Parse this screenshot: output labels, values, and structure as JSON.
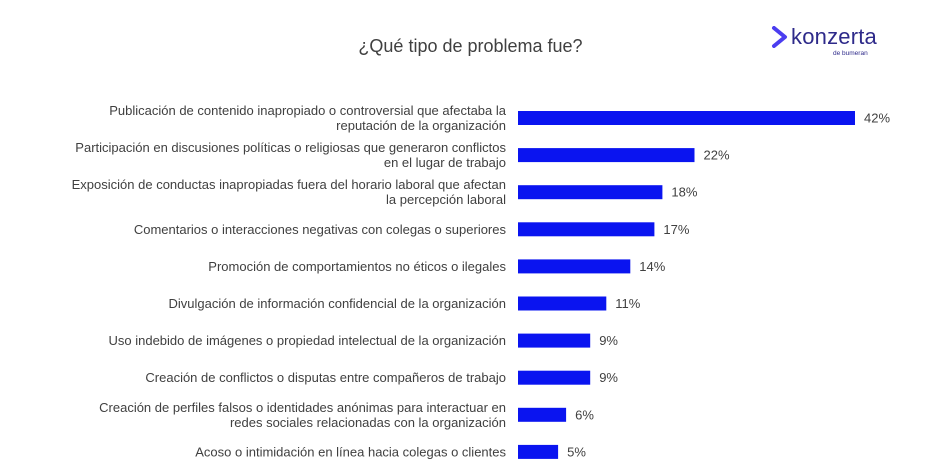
{
  "logo": {
    "brand": "konzerta",
    "sub": "de bumeran"
  },
  "colors": {
    "bar": "#0a14f0",
    "text": "#404040",
    "brand": "#2e2a8a",
    "mark": "#4b3df0"
  },
  "chart_data": {
    "type": "bar",
    "orientation": "horizontal",
    "title": "¿Qué tipo de problema fue?",
    "unit": "%",
    "categories": [
      [
        "Publicación de contenido inapropiado o controversial que afectaba la",
        "reputación de la organización"
      ],
      [
        "Participación en discusiones políticas o religiosas que generaron conflictos",
        "en el lugar de trabajo"
      ],
      [
        "Exposición de conductas inapropiadas fuera del horario laboral que afectan",
        "la percepción laboral"
      ],
      [
        "Comentarios o interacciones negativas con colegas o superiores"
      ],
      [
        "Promoción de comportamientos no éticos o ilegales"
      ],
      [
        "Divulgación de información confidencial de la organización"
      ],
      [
        "Uso indebido de imágenes o propiedad intelectual de la organización"
      ],
      [
        "Creación de conflictos o disputas entre compañeros de trabajo"
      ],
      [
        "Creación de perfiles falsos o identidades anónimas para interactuar en",
        "redes sociales relacionadas con la organización"
      ],
      [
        "Acoso o intimidación en línea hacia colegas o clientes"
      ]
    ],
    "values": [
      42,
      22,
      18,
      17,
      14,
      11,
      9,
      9,
      6,
      5
    ],
    "value_labels": [
      "42%",
      "22%",
      "18%",
      "17%",
      "14%",
      "11%",
      "9%",
      "9%",
      "6%",
      "5%"
    ],
    "xlim": [
      0,
      42
    ],
    "grid": false,
    "legend": "none"
  }
}
